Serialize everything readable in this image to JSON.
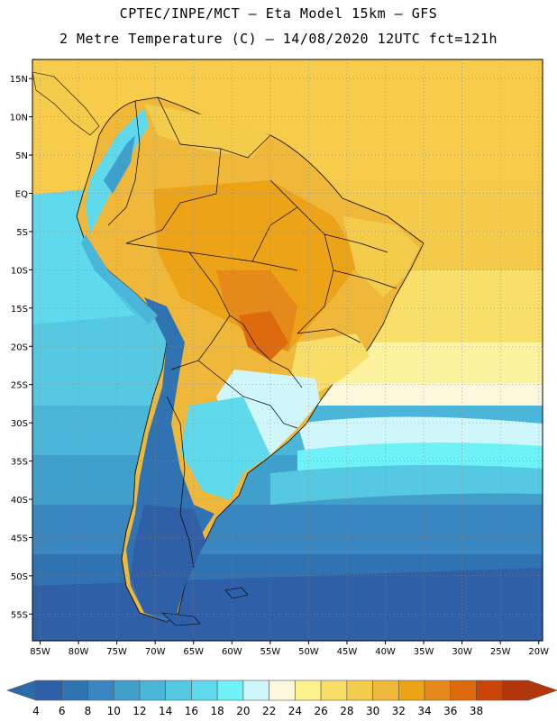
{
  "header": {
    "line1": "CPTEC/INPE/MCT –  Eta Model 15km – GFS",
    "line2": "2 Metre Temperature (C) – 14/08/2020 12UTC fct=121h"
  },
  "map": {
    "lon_range": [
      -86,
      -19.5
    ],
    "lat_range": [
      -58.5,
      17.5
    ],
    "lat_ticks": [
      "15N",
      "10N",
      "5N",
      "EQ",
      "5S",
      "10S",
      "15S",
      "20S",
      "25S",
      "30S",
      "35S",
      "40S",
      "45S",
      "50S",
      "55S"
    ],
    "lat_values": [
      15,
      10,
      5,
      0,
      -5,
      -10,
      -15,
      -20,
      -25,
      -30,
      -35,
      -40,
      -45,
      -50,
      -55
    ],
    "lon_ticks": [
      "85W",
      "80W",
      "75W",
      "70W",
      "65W",
      "60W",
      "55W",
      "50W",
      "45W",
      "40W",
      "35W",
      "30W",
      "25W",
      "20W"
    ],
    "lon_values": [
      -85,
      -80,
      -75,
      -70,
      -65,
      -60,
      -55,
      -50,
      -45,
      -40,
      -35,
      -30,
      -25,
      -20
    ],
    "grid": "dotted"
  },
  "colorbar": {
    "labels": [
      "4",
      "6",
      "8",
      "10",
      "12",
      "14",
      "16",
      "18",
      "20",
      "22",
      "24",
      "26",
      "28",
      "30",
      "32",
      "34",
      "36",
      "38"
    ],
    "colors": [
      "#2f5fa6",
      "#2f73b3",
      "#3a86c0",
      "#40a0cc",
      "#4bb6d9",
      "#55c8e2",
      "#5fd9ec",
      "#6ef2f7",
      "#cff6fb",
      "#fdf7dc",
      "#fdf18d",
      "#f8de66",
      "#f4cc4c",
      "#efb83a",
      "#eca318",
      "#e58a1a",
      "#de6a0e",
      "#c94606",
      "#b2360a"
    ],
    "low_arrow_color": "#2c6aa8",
    "high_arrow_color": "#b2360a"
  }
}
